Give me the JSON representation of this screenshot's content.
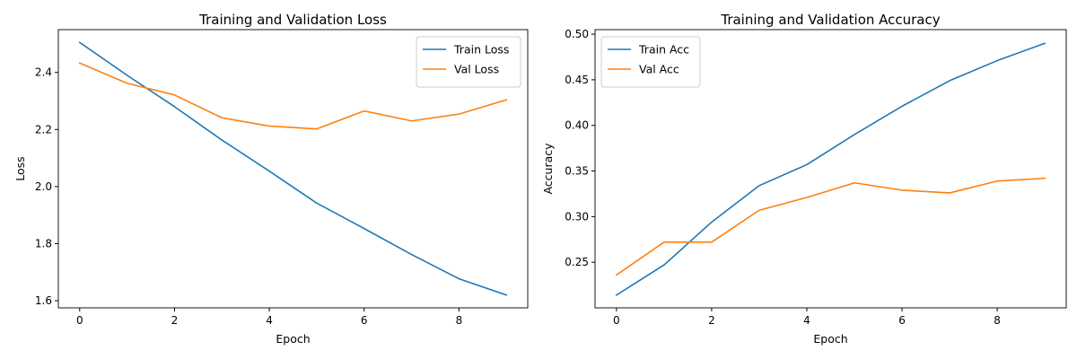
{
  "colors": {
    "train": "#1f77b4",
    "val": "#ff7f0e"
  },
  "chart_data": [
    {
      "type": "line",
      "title": "Training and Validation Loss",
      "xlabel": "Epoch",
      "ylabel": "Loss",
      "x": [
        0,
        1,
        2,
        3,
        4,
        5,
        6,
        7,
        8,
        9
      ],
      "xlim": [
        -0.45,
        9.45
      ],
      "ylim": [
        1.575,
        2.55
      ],
      "xticks": [
        0,
        2,
        4,
        6,
        8
      ],
      "yticks": [
        1.6,
        1.8,
        2.0,
        2.2,
        2.4
      ],
      "tick_decimals": 1,
      "legend_position": "top-right",
      "series": [
        {
          "name": "Train Loss",
          "color_key": "train",
          "values": [
            2.505,
            2.39,
            2.28,
            2.163,
            2.054,
            1.942,
            1.853,
            1.762,
            1.677,
            1.62
          ]
        },
        {
          "name": "Val Loss",
          "color_key": "val",
          "values": [
            2.433,
            2.362,
            2.321,
            2.241,
            2.212,
            2.202,
            2.265,
            2.23,
            2.254,
            2.304
          ]
        }
      ]
    },
    {
      "type": "line",
      "title": "Training and Validation Accuracy",
      "xlabel": "Epoch",
      "ylabel": "Accuracy",
      "x": [
        0,
        1,
        2,
        3,
        4,
        5,
        6,
        7,
        8,
        9
      ],
      "xlim": [
        -0.45,
        9.45
      ],
      "ylim": [
        0.2,
        0.505
      ],
      "xticks": [
        0,
        2,
        4,
        6,
        8
      ],
      "yticks": [
        0.25,
        0.3,
        0.35,
        0.4,
        0.45,
        0.5
      ],
      "tick_decimals": 2,
      "legend_position": "top-left",
      "series": [
        {
          "name": "Train Acc",
          "color_key": "train",
          "values": [
            0.214,
            0.247,
            0.294,
            0.334,
            0.357,
            0.39,
            0.421,
            0.449,
            0.471,
            0.49
          ]
        },
        {
          "name": "Val Acc",
          "color_key": "val",
          "values": [
            0.236,
            0.272,
            0.272,
            0.307,
            0.321,
            0.337,
            0.329,
            0.326,
            0.339,
            0.342
          ]
        }
      ]
    }
  ]
}
